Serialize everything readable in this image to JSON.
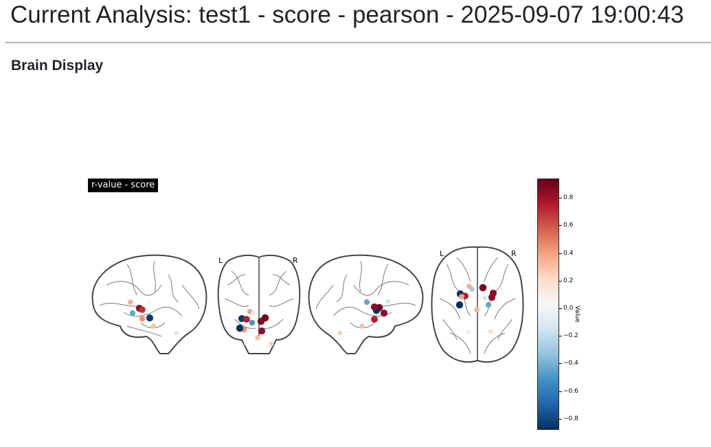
{
  "header": {
    "title": "Current Analysis: test1 - score - pearson - 2025-09-07 19:00:43"
  },
  "section": {
    "heading": "Brain Display"
  },
  "plot": {
    "label": "r-value - score",
    "orientation": {
      "left": "L",
      "right": "R",
      "left2": "L",
      "right2": "R"
    },
    "colorbar": {
      "label": "Value",
      "ticks": [
        "0.8",
        "0.6",
        "0.4",
        "0.2",
        "0.0",
        "−0.2",
        "−0.4",
        "−0.6",
        "−0.8"
      ],
      "tick_values": [
        0.8,
        0.6,
        0.4,
        0.2,
        0.0,
        -0.2,
        -0.4,
        -0.6,
        -0.8
      ],
      "range": [
        -0.88,
        0.94
      ],
      "colormap": "RdBu_r"
    },
    "views": [
      "sagittal-left",
      "coronal",
      "sagittal-right",
      "axial"
    ],
    "nodes": {
      "sagittal_left": [
        {
          "v": 0.35
        },
        {
          "v": 0.85
        },
        {
          "v": 0.7
        },
        {
          "v": -0.45
        },
        {
          "v": 0.05
        },
        {
          "v": -0.85
        },
        {
          "v": 0.45
        },
        {
          "v": 0.3
        },
        {
          "v": -0.1
        }
      ],
      "coronal": [
        {
          "v": -0.85
        },
        {
          "v": 0.75
        },
        {
          "v": 0.4
        },
        {
          "v": -0.1
        },
        {
          "v": -0.5
        },
        {
          "v": 0.88
        },
        {
          "v": 0.9
        },
        {
          "v": 0.85
        },
        {
          "v": 0.45
        },
        {
          "v": -0.88
        },
        {
          "v": 0.3
        },
        {
          "v": 0.0
        },
        {
          "v": 0.25
        }
      ],
      "sagittal_right": [
        {
          "v": -0.45
        },
        {
          "v": -0.15
        },
        {
          "v": 0.9
        },
        {
          "v": 0.85
        },
        {
          "v": -0.88
        },
        {
          "v": 0.75
        },
        {
          "v": 0.85
        },
        {
          "v": 0.3
        },
        {
          "v": 0.25
        }
      ],
      "axial": [
        {
          "v": 0.35
        },
        {
          "v": -0.3
        },
        {
          "v": 0.9
        },
        {
          "v": 0.85
        },
        {
          "v": 0.85
        },
        {
          "v": -0.88
        },
        {
          "v": 0.75
        },
        {
          "v": 0.4
        },
        {
          "v": -0.45
        },
        {
          "v": -0.88
        },
        {
          "v": -0.15
        },
        {
          "v": 0.35
        },
        {
          "v": 0.2
        },
        {
          "v": -0.05
        }
      ]
    }
  }
}
